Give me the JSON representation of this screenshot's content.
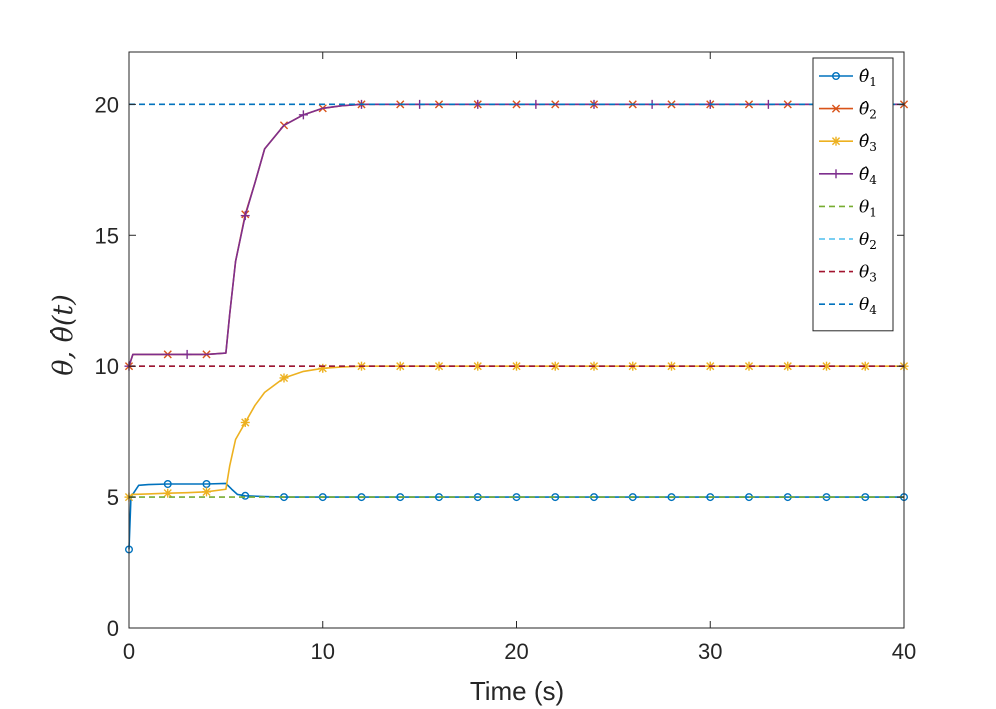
{
  "chart_data": {
    "type": "line",
    "xlabel": "Time (s)",
    "ylabel": "θ, θ̂(t)",
    "xlim": [
      0,
      40
    ],
    "ylim": [
      0,
      22
    ],
    "xticks": [
      0,
      10,
      20,
      30,
      40
    ],
    "yticks": [
      0,
      5,
      10,
      15,
      20
    ],
    "grid": false,
    "legend_position": "top-right",
    "series": [
      {
        "name": "θ̂1",
        "base": "θ̂",
        "sub": "1",
        "style": "solid",
        "color": "#0072BD",
        "marker": "o",
        "x": [
          0,
          0.1,
          0.5,
          1,
          2,
          3,
          4,
          5,
          5.3,
          5.6,
          6,
          7,
          8,
          10,
          15,
          20,
          25,
          30,
          35,
          40
        ],
        "y": [
          3.0,
          5.0,
          5.45,
          5.48,
          5.5,
          5.5,
          5.5,
          5.52,
          5.3,
          5.1,
          5.05,
          5.02,
          5.0,
          5.0,
          5.0,
          5.0,
          5.0,
          5.0,
          5.0,
          5.0
        ],
        "marker_x": [
          0,
          2,
          4,
          6,
          8,
          10,
          12,
          14,
          16,
          18,
          20,
          22,
          24,
          26,
          28,
          30,
          32,
          34,
          36,
          38,
          40
        ]
      },
      {
        "name": "θ̂2",
        "base": "θ̂",
        "sub": "2",
        "style": "solid",
        "color": "#D95319",
        "marker": "x",
        "x": [
          0,
          0.2,
          1,
          2,
          3,
          4,
          5,
          5.2,
          5.5,
          6,
          6.5,
          7,
          8,
          9,
          10,
          11,
          12,
          14,
          16,
          20,
          30,
          40
        ],
        "y": [
          10.0,
          10.45,
          10.45,
          10.45,
          10.45,
          10.45,
          10.5,
          12.0,
          14.0,
          15.8,
          17.0,
          18.3,
          19.2,
          19.6,
          19.85,
          19.95,
          20.0,
          20.0,
          20.0,
          20.0,
          20.0,
          20.0
        ],
        "marker_x": [
          0,
          2,
          4,
          6,
          8,
          10,
          12,
          14,
          16,
          18,
          20,
          22,
          24,
          26,
          28,
          30,
          32,
          34,
          36,
          38,
          40
        ]
      },
      {
        "name": "θ̂3",
        "base": "θ̂",
        "sub": "3",
        "style": "solid",
        "color": "#EDB120",
        "marker": "*",
        "x": [
          0,
          0.2,
          1,
          2,
          3,
          4,
          5,
          5.2,
          5.5,
          6,
          6.5,
          7,
          8,
          9,
          10,
          11,
          12,
          14,
          16,
          20,
          30,
          40
        ],
        "y": [
          5.0,
          5.1,
          5.12,
          5.15,
          5.17,
          5.2,
          5.3,
          6.2,
          7.2,
          7.85,
          8.5,
          9.0,
          9.55,
          9.8,
          9.92,
          9.97,
          10.0,
          10.0,
          10.0,
          10.0,
          10.0,
          10.0
        ],
        "marker_x": [
          0,
          2,
          4,
          6,
          8,
          10,
          12,
          14,
          16,
          18,
          20,
          22,
          24,
          26,
          28,
          30,
          32,
          34,
          36,
          38,
          40
        ]
      },
      {
        "name": "θ̂4",
        "base": "θ̂",
        "sub": "4",
        "style": "solid",
        "color": "#7E2F8E",
        "marker": "+",
        "x": [
          0,
          0.2,
          1,
          2,
          3,
          4,
          5,
          5.2,
          5.5,
          6,
          6.5,
          7,
          8,
          9,
          10,
          11,
          12,
          14,
          16,
          20,
          30,
          40
        ],
        "y": [
          10.0,
          10.45,
          10.45,
          10.45,
          10.45,
          10.45,
          10.5,
          12.0,
          14.0,
          15.75,
          17.0,
          18.3,
          19.2,
          19.6,
          19.85,
          19.95,
          20.0,
          20.0,
          20.0,
          20.0,
          20.0,
          20.0
        ],
        "marker_x": [
          0,
          3,
          6,
          9,
          12,
          15,
          18,
          21,
          24,
          27,
          30,
          33,
          36,
          39
        ]
      },
      {
        "name": "θ1",
        "base": "θ",
        "sub": "1",
        "style": "dashed",
        "color": "#77AC30",
        "x": [
          0,
          40
        ],
        "y": [
          5,
          5
        ]
      },
      {
        "name": "θ2",
        "base": "θ",
        "sub": "2",
        "style": "dashed",
        "color": "#4DBEEE",
        "x": [
          0,
          40
        ],
        "y": [
          10,
          10
        ]
      },
      {
        "name": "θ3",
        "base": "θ",
        "sub": "3",
        "style": "dashed",
        "color": "#A2142F",
        "x": [
          0,
          40
        ],
        "y": [
          10,
          10
        ]
      },
      {
        "name": "θ4",
        "base": "θ",
        "sub": "4",
        "style": "dashed",
        "color": "#0072BD",
        "x": [
          0,
          40
        ],
        "y": [
          20,
          20
        ]
      }
    ]
  }
}
